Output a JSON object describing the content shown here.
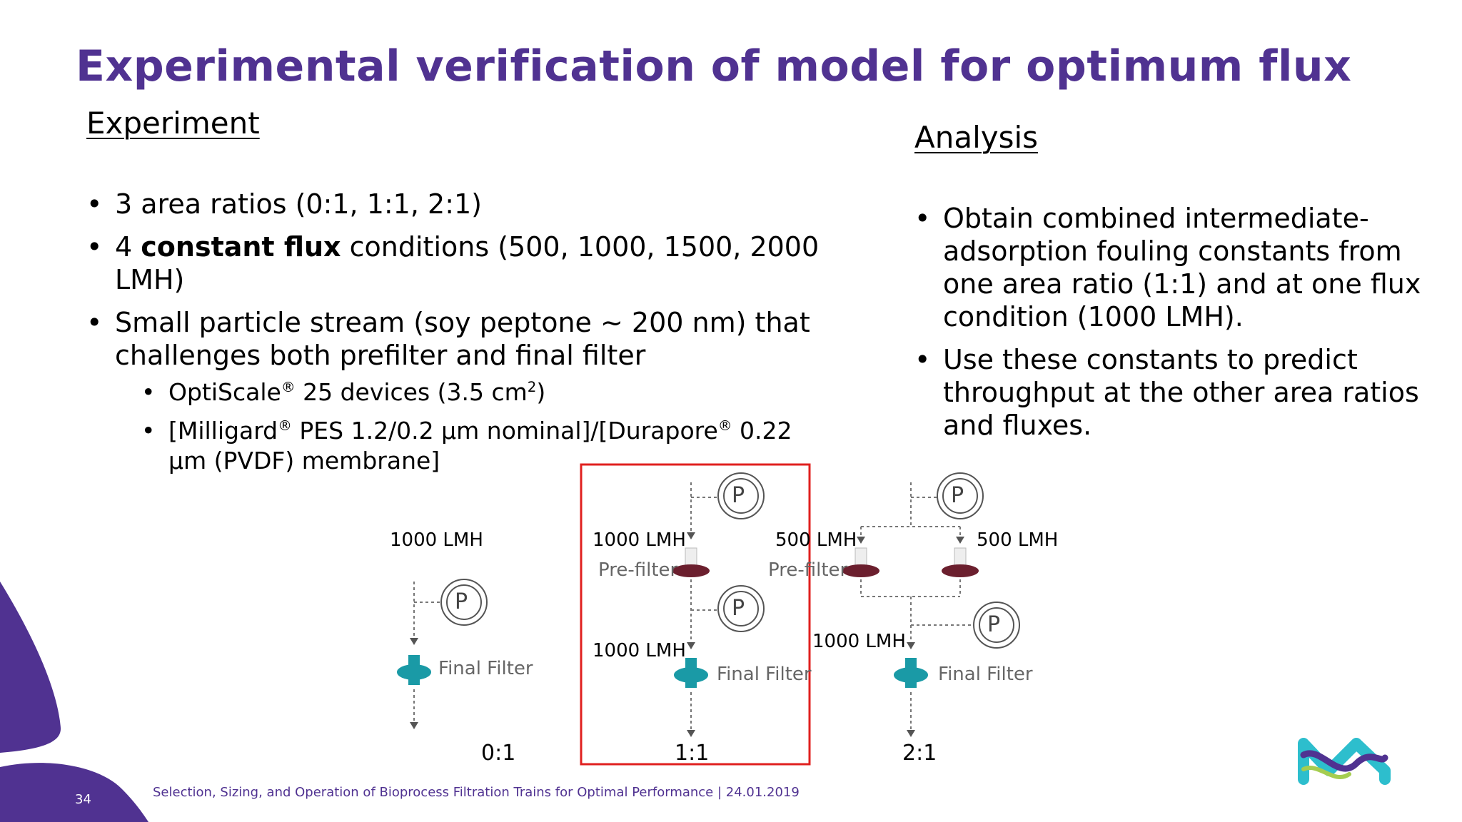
{
  "title": "Experimental verification of model for optimum flux",
  "experiment": {
    "heading": "Experiment",
    "b1": "3 area ratios (0:1, 1:1, 2:1)",
    "b2_pre": "4 ",
    "b2_bold": "constant flux",
    "b2_post": " conditions (500, 1000, 1500, 2000 LMH)",
    "b3": "Small particle stream (soy peptone ~ 200 nm) that challenges both prefilter and final filter",
    "s1_a": "OptiScale",
    "s1_reg": "®",
    "s1_b": " 25 devices (3.5 cm",
    "s1_sup": "2",
    "s1_c": ")",
    "s2_a": "[Milligard",
    "s2_reg": "®",
    "s2_b": " PES 1.2/0.2 µm nominal]/[Durapore",
    "s2_reg2": "®",
    "s2_c": " 0.22 µm (PVDF) membrane]"
  },
  "analysis": {
    "heading": "Analysis",
    "b1": "Obtain combined intermediate-adsorption fouling constants from one area ratio (1:1) and at one flux condition (1000 LMH).",
    "b2": "Use these constants to predict throughput at the other area ratios and fluxes."
  },
  "diagrams": {
    "r0_flux": "1000 LMH",
    "r0_final": "Final Filter",
    "r0_ratio": "0:1",
    "r1_flux_top": "1000 LMH",
    "r1_pre": "Pre-filter",
    "r1_flux_bottom": "1000 LMH",
    "r1_final": "Final Filter",
    "r1_ratio": "1:1",
    "r2_flux_left": "500 LMH",
    "r2_flux_right": "500 LMH",
    "r2_pre": "Pre-filter",
    "r2_flux_bottom": "1000 LMH",
    "r2_final": "Final Filter",
    "r2_ratio": "2:1",
    "gauge_letter": "P"
  },
  "footer": {
    "page_number": "34",
    "text": "Selection, Sizing, and Operation of Bioprocess Filtration Trains for Optimal Performance | 24.01.2019"
  },
  "colors": {
    "brand_purple": "#503291",
    "highlight_red": "#e0201f",
    "final_filter_teal": "#1a9aa6",
    "prefilter_maroon": "#6b1f2e",
    "logo_teal": "#2dbecd"
  }
}
